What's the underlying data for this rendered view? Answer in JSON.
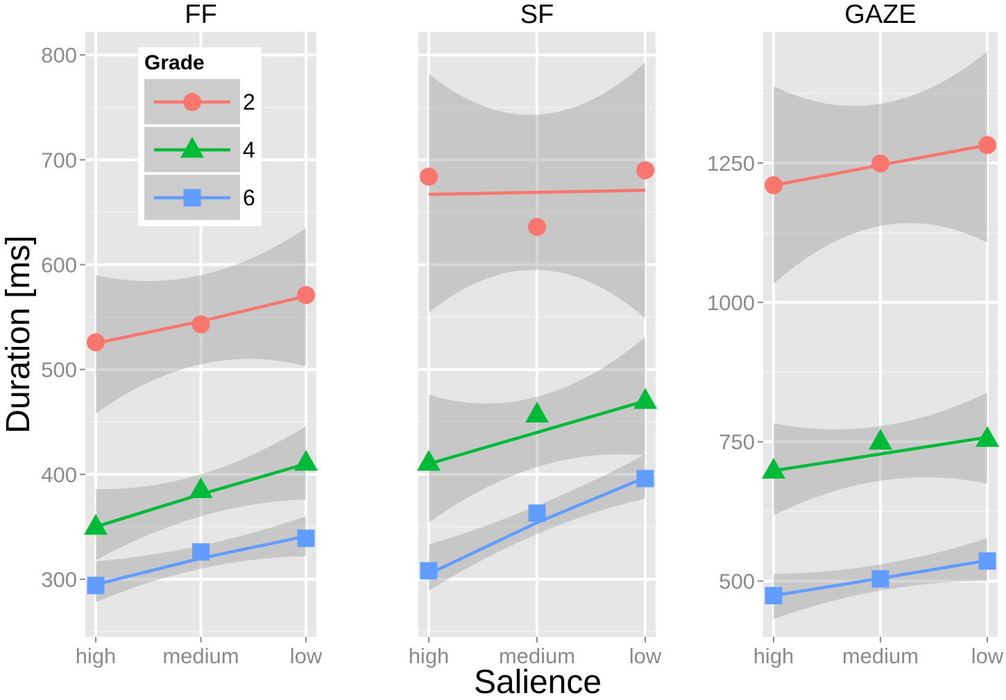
{
  "chart_data": {
    "type": "line",
    "xlabel": "Salience",
    "ylabel": "Duration [ms]",
    "categories": [
      "high",
      "medium",
      "low"
    ],
    "legend": {
      "title": "Grade",
      "position": "top-left of first panel",
      "entries": [
        {
          "label": "2",
          "color": "#F8766D",
          "shape": "circle"
        },
        {
          "label": "4",
          "color": "#00BA38",
          "shape": "triangle"
        },
        {
          "label": "6",
          "color": "#619CFF",
          "shape": "square"
        }
      ]
    },
    "panels": [
      {
        "title": "FF",
        "ylim": [
          245,
          822
        ],
        "yticks": [
          300,
          400,
          500,
          600,
          700,
          800
        ],
        "series": [
          {
            "name": "2",
            "points": [
              526,
              543,
              571
            ],
            "fit": [
              525,
              546,
              570
            ],
            "band_lower": [
              458,
              505,
              503
            ],
            "band_upper": [
              590,
              590,
              635
            ]
          },
          {
            "name": "4",
            "points": [
              350,
              385,
              411
            ],
            "fit": [
              350,
              381,
              410
            ],
            "band_lower": [
              318,
              360,
              376
            ],
            "band_upper": [
              386,
              400,
              446
            ]
          },
          {
            "name": "6",
            "points": [
              294,
              326,
              339
            ],
            "fit": [
              295,
              320,
              341
            ],
            "band_lower": [
              278,
              310,
              322
            ],
            "band_upper": [
              317,
              332,
              360
            ]
          }
        ]
      },
      {
        "title": "SF",
        "ylim": [
          245,
          822
        ],
        "yticks": [],
        "series": [
          {
            "name": "2",
            "points": [
              684,
              636,
              690
            ],
            "fit": [
              667,
              669,
              671
            ],
            "band_lower": [
              554,
              595,
              549
            ],
            "band_upper": [
              782,
              743,
              793
            ]
          },
          {
            "name": "4",
            "points": [
              411,
              457,
              470
            ],
            "fit": [
              410,
              440,
              470
            ],
            "band_lower": [
              354,
              407,
              418
            ],
            "band_upper": [
              476,
              474,
              531
            ]
          },
          {
            "name": "6",
            "points": [
              308,
              363,
              396
            ],
            "fit": [
              305,
              354,
              397
            ],
            "band_lower": [
              289,
              343,
              377
            ],
            "band_upper": [
              333,
              370,
              419
            ]
          }
        ]
      },
      {
        "title": "GAZE",
        "ylim": [
          400,
          1485
        ],
        "yticks": [
          500,
          750,
          1000,
          1250
        ],
        "series": [
          {
            "name": "2",
            "points": [
              1210,
              1249,
              1282
            ],
            "fit": [
              1210,
              1246,
              1282
            ],
            "band_lower": [
              1033,
              1137,
              1107
            ],
            "band_upper": [
              1388,
              1356,
              1450
            ]
          },
          {
            "name": "4",
            "points": [
              698,
              750,
              755
            ],
            "fit": [
              698,
              728,
              758
            ],
            "band_lower": [
              618,
              680,
              675
            ],
            "band_upper": [
              783,
              778,
              838
            ]
          },
          {
            "name": "6",
            "points": [
              474,
              504,
              536
            ],
            "fit": [
              474,
              505,
              537
            ],
            "band_lower": [
              432,
              483,
              500
            ],
            "band_upper": [
              513,
              530,
              577
            ]
          }
        ]
      }
    ]
  }
}
